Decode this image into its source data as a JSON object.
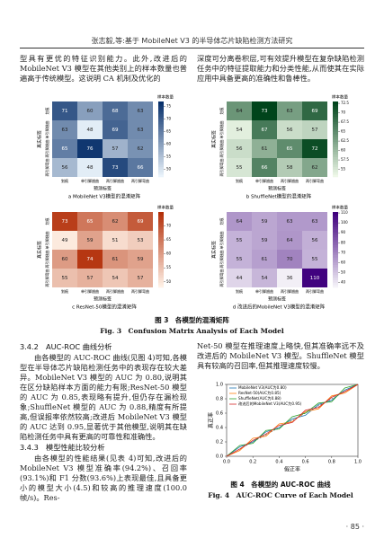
{
  "header": "张志毅,等:基于 MobileNet V3 的半导体芯片缺陷检测方法研究",
  "paragraphs": {
    "left_top": "型具有更优的特征识别能力。此外,改进后的 MobileNet V3 模型在其他类别上的样本数量也普遍高于传统模型。这说明 CA 机制及优化的",
    "right_top": "深度可分离卷积层,可有效提升模型在复杂缺陷检测任务中的特征提取能力和分类性能,从而使其在实际应用中具备更高的准确性和鲁棒性。",
    "section_342_title": "3.4.2　AUC-ROC 曲线分析",
    "section_342_text": "由各模型的 AUC-ROC 曲线(见图 4)可知,各模型在半导体芯片缺陷检测任务中的表现存在较大差异。MobileNet V3 模型的 AUC 为 0.80,说明其在区分缺陷样本方面的能力有限;ResNet-50 模型的 AUC 为 0.85,表现略有提升,但仍存在漏检现象;ShuffleNet 模型的 AUC 为 0.88,精度有所提高,但误报率依然较高;改进后 MobileNet V3 模型的 AUC 达到 0.95,显著优于其他模型,说明其在缺陷检测任务中具有更高的可靠性和准确性。",
    "section_343_title": "3.4.3　模型性能比较分析",
    "section_343_text": "由各模型的性能结果(见表 4)可知,改进后的 MobileNet V3 模型准确率(94.2%)、召回率(93.1%)和 F1 分数(93.6%)上表现最佳,且具备更小的模型大小(4.5)和较高的推理速度(100.0 帧/s)。Res-",
    "right_bottom": "Net-50 模型在推理速度上略快,但其准确率远不及改进后的 MobileNet V3 模型。ShuffleNet 模型具有较高的召回率,但其推理速度较慢。"
  },
  "figure3": {
    "caption_cn": "图 3　各模型的混淆矩阵",
    "caption_en": "Fig. 3　Confusion Matrix Analysis of Each Model",
    "colorbar_label": "样本数量",
    "x_label": "预测标签",
    "y_label": "真实标签",
    "class_labels": [
      "划痕",
      "单引脚翘曲",
      "两引脚翘曲",
      "两引脚弯曲"
    ],
    "panels": [
      {
        "caption": "a MobileNet V3模型的混淆矩阵",
        "cmap": [
          "#eaf3fb",
          "#08306b"
        ],
        "clim": [
          47,
          77
        ],
        "colorbar_ticks": [
          50,
          55,
          60,
          65,
          70,
          75
        ],
        "matrix": [
          [
            71,
            60,
            68,
            63
          ],
          [
            63,
            48,
            69,
            63
          ],
          [
            65,
            76,
            57,
            62
          ],
          [
            56,
            48,
            73,
            66
          ]
        ]
      },
      {
        "caption": "b ShuffleNet模型的混淆矩阵",
        "cmap": [
          "#eef8e8",
          "#00441b"
        ],
        "clim": [
          53,
          73
        ],
        "colorbar_ticks": [
          55,
          57.5,
          60,
          62.5,
          65,
          67.5,
          70,
          72.5
        ],
        "matrix": [
          [
            64,
            73,
            63,
            69
          ],
          [
            54,
            67,
            56,
            57
          ],
          [
            56,
            61,
            65,
            72
          ],
          [
            55,
            66,
            58,
            62
          ]
        ]
      },
      {
        "caption": "c ResNet-50模型的混淆矩阵",
        "cmap": [
          "#fff1e6",
          "#b3300a"
        ],
        "clim": [
          48,
          75
        ],
        "colorbar_ticks": [
          50,
          55,
          60,
          65,
          70
        ],
        "matrix": [
          [
            73,
            65,
            62,
            69
          ],
          [
            49,
            59,
            51,
            53
          ],
          [
            60,
            74,
            61,
            59
          ],
          [
            55,
            57,
            54,
            57
          ]
        ]
      },
      {
        "caption": "d 改进后的MobileNet V3模型的混淆矩阵",
        "cmap": [
          "#f4f2f8",
          "#3f007d"
        ],
        "clim": [
          35,
          111
        ],
        "colorbar_ticks": [
          40,
          50,
          60,
          70,
          80,
          90,
          100,
          110
        ],
        "matrix": [
          [
            64,
            59,
            63,
            63
          ],
          [
            55,
            59,
            64,
            56
          ],
          [
            55,
            61,
            70,
            55
          ],
          [
            44,
            54,
            36,
            110
          ]
        ]
      }
    ]
  },
  "figure4": {
    "caption_cn": "图 4　各模型的 AUC-ROC 曲线",
    "caption_en": "Fig. 4　AUC-ROC Curve of Each Model",
    "chart_data": {
      "type": "line",
      "x_label": "假正率",
      "y_label": "真正率",
      "xlim": [
        0,
        1
      ],
      "ylim": [
        0,
        1
      ],
      "xticks": [
        {
          "value": 0,
          "label": "0.0"
        },
        0.2,
        0.4,
        0.6,
        0.8,
        {
          "value": 1,
          "label": "1.0"
        }
      ],
      "yticks": [
        {
          "value": 0,
          "label": "0.0"
        },
        0.2,
        0.4,
        0.6,
        0.8,
        {
          "value": 1,
          "label": "1.0"
        }
      ],
      "legend": "upper left",
      "series": [
        {
          "name": "MobileNet V3(AUC为0.80)",
          "color": "#1f77b4",
          "x": [
            0,
            0.1,
            0.2,
            0.3,
            0.4,
            0.5,
            0.6,
            0.7,
            0.8,
            0.9,
            1
          ],
          "y": [
            0,
            0.13,
            0.2,
            0.34,
            0.4,
            0.52,
            0.57,
            0.72,
            0.78,
            0.92,
            1
          ]
        },
        {
          "name": "ResNet-50(AUC为0.85)",
          "color": "#ff7f0e",
          "x": [
            0,
            0.1,
            0.2,
            0.3,
            0.4,
            0.5,
            0.6,
            0.7,
            0.8,
            0.9,
            1
          ],
          "y": [
            0,
            0.08,
            0.25,
            0.28,
            0.45,
            0.48,
            0.62,
            0.66,
            0.84,
            0.88,
            1
          ]
        },
        {
          "name": "ShuffleNet(AUC为0.88)",
          "color": "#2ca02c",
          "x": [
            0,
            0.1,
            0.2,
            0.3,
            0.4,
            0.5,
            0.6,
            0.7,
            0.8,
            0.9,
            1
          ],
          "y": [
            0,
            0.15,
            0.18,
            0.36,
            0.38,
            0.55,
            0.6,
            0.74,
            0.76,
            0.95,
            1
          ]
        },
        {
          "name": "改进后的MobileNet V3(AUC为0.95)",
          "color": "#d62728",
          "x": [
            0,
            0.1,
            0.2,
            0.3,
            0.4,
            0.5,
            0.6,
            0.7,
            0.8,
            0.9,
            1
          ],
          "y": [
            0,
            0.1,
            0.22,
            0.31,
            0.43,
            0.47,
            0.64,
            0.68,
            0.82,
            0.9,
            1
          ]
        }
      ]
    }
  },
  "page_number": "· 85 ·"
}
